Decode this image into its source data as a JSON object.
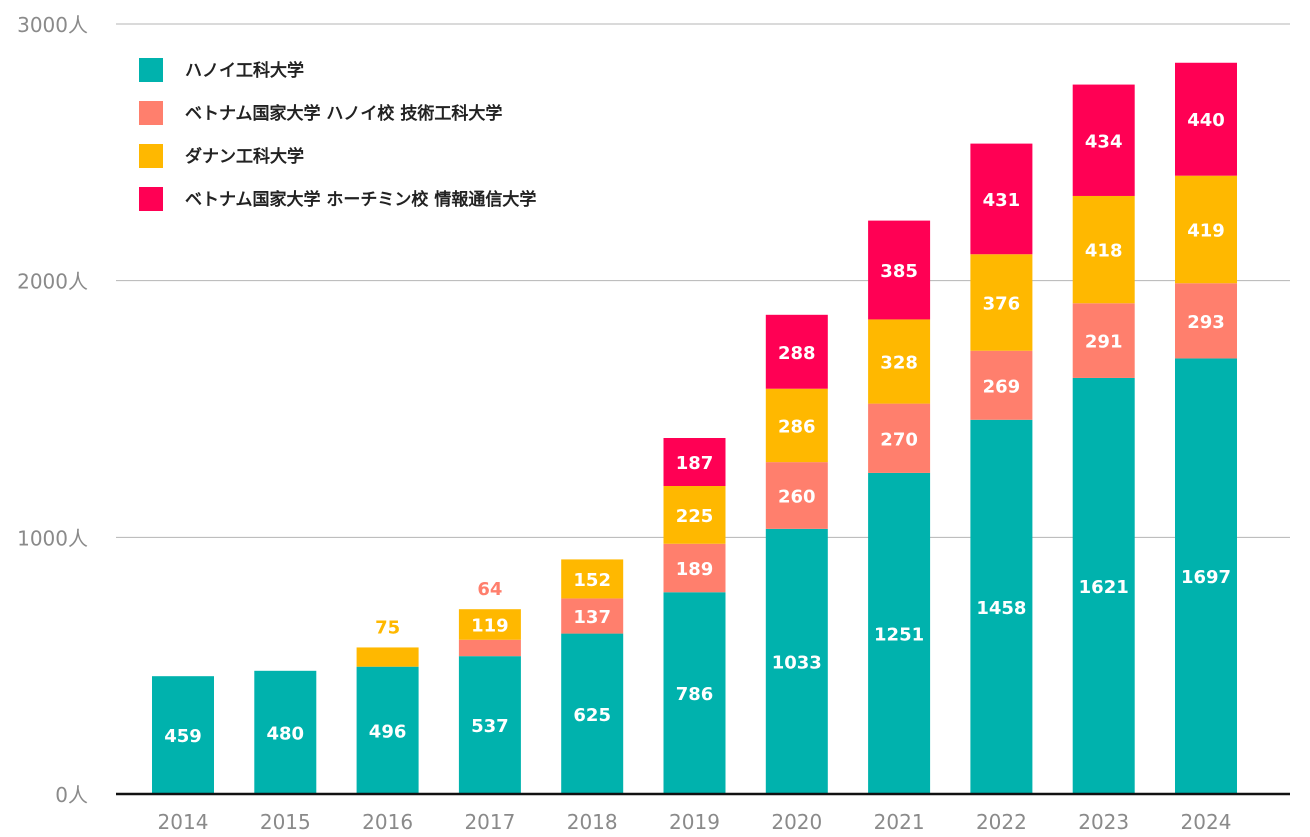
{
  "chart_data": {
    "type": "bar",
    "stacked": true,
    "categories": [
      "2014",
      "2015",
      "2016",
      "2017",
      "2018",
      "2019",
      "2020",
      "2021",
      "2022",
      "2023",
      "2024"
    ],
    "series": [
      {
        "name": "ハノイ工科大学",
        "color": "#00b2ad",
        "values": [
          459,
          480,
          496,
          537,
          625,
          786,
          1033,
          1251,
          1458,
          1621,
          1697
        ]
      },
      {
        "name": "ベトナム国家大学 ハノイ校 技術工科大学",
        "color": "#ff7f6d",
        "values": [
          0,
          0,
          0,
          64,
          137,
          189,
          260,
          270,
          269,
          291,
          293
        ]
      },
      {
        "name": "ダナン工科大学",
        "color": "#ffb800",
        "values": [
          0,
          0,
          75,
          119,
          152,
          225,
          286,
          328,
          376,
          418,
          419
        ]
      },
      {
        "name": "ベトナム国家大学 ホーチミン校 情報通信大学",
        "color": "#ff0054",
        "values": [
          0,
          0,
          0,
          0,
          0,
          187,
          288,
          385,
          431,
          434,
          440
        ]
      }
    ],
    "yticks": [
      {
        "value": 0,
        "label": "0人"
      },
      {
        "value": 1000,
        "label": "1000人"
      },
      {
        "value": 2000,
        "label": "2000人"
      },
      {
        "value": 3000,
        "label": "3000人"
      }
    ],
    "ylim": [
      0,
      3000
    ],
    "grid": true,
    "legend_position": "top-left"
  }
}
